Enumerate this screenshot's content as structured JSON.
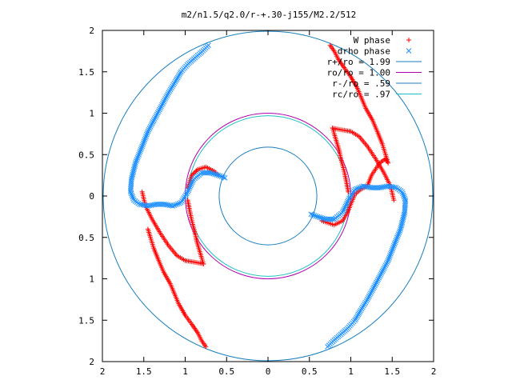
{
  "chart_data": {
    "type": "scatter",
    "title": "m2/n1.5/q2.0/r-+.30-j155/M2.2/512",
    "xlim": [
      -2,
      2
    ],
    "ylim": [
      -2,
      2
    ],
    "x_ticks": [
      -2,
      -1.5,
      -1,
      -0.5,
      0,
      0.5,
      1,
      1.5,
      2
    ],
    "y_ticks": [
      2,
      1.5,
      1,
      0.5,
      0,
      -0.5,
      -1,
      -1.5,
      -2
    ],
    "x_tick_labels": [
      "2",
      "1.5",
      "1",
      "0.5",
      "0",
      "0.5",
      "1",
      "1.5",
      "2"
    ],
    "y_tick_labels": [
      "2",
      "1.5",
      "1",
      "0.5",
      "0",
      "0.5",
      "1",
      "1.5",
      "2"
    ],
    "grid": false,
    "legend_position": "top-right",
    "series": [
      {
        "name": "W phase",
        "marker": "plus",
        "color": "#ff0000",
        "paths": [
          [
            [
              0.75,
              1.82
            ],
            [
              0.8,
              1.75
            ],
            [
              0.85,
              1.65
            ],
            [
              0.92,
              1.55
            ],
            [
              1.0,
              1.44
            ],
            [
              1.08,
              1.3
            ],
            [
              1.13,
              1.18
            ],
            [
              1.18,
              1.06
            ],
            [
              1.26,
              0.92
            ],
            [
              1.32,
              0.78
            ],
            [
              1.38,
              0.63
            ],
            [
              1.42,
              0.5
            ],
            [
              1.45,
              0.4
            ]
          ],
          [
            [
              1.45,
              0.4
            ],
            [
              1.42,
              0.45
            ],
            [
              1.35,
              0.4
            ],
            [
              1.25,
              0.25
            ],
            [
              1.2,
              0.12
            ],
            [
              1.12,
              0.08
            ],
            [
              1.05,
              0.02
            ],
            [
              1.0,
              -0.1
            ],
            [
              0.96,
              -0.2
            ],
            [
              0.9,
              -0.3
            ],
            [
              0.8,
              -0.35
            ],
            [
              0.65,
              -0.3
            ]
          ],
          [
            [
              1.52,
              -0.05
            ],
            [
              1.48,
              0.12
            ],
            [
              1.4,
              0.28
            ],
            [
              1.3,
              0.45
            ],
            [
              1.2,
              0.6
            ],
            [
              1.1,
              0.72
            ],
            [
              1.0,
              0.78
            ],
            [
              0.88,
              0.8
            ],
            [
              0.78,
              0.82
            ]
          ],
          [
            [
              0.78,
              0.82
            ],
            [
              0.8,
              0.75
            ],
            [
              0.83,
              0.65
            ],
            [
              0.86,
              0.55
            ],
            [
              0.88,
              0.45
            ],
            [
              0.92,
              0.3
            ],
            [
              0.95,
              0.15
            ],
            [
              0.97,
              0.05
            ]
          ],
          [
            [
              -0.75,
              -1.82
            ],
            [
              -0.8,
              -1.75
            ],
            [
              -0.85,
              -1.65
            ],
            [
              -0.92,
              -1.55
            ],
            [
              -1.0,
              -1.44
            ],
            [
              -1.08,
              -1.3
            ],
            [
              -1.13,
              -1.18
            ],
            [
              -1.18,
              -1.06
            ],
            [
              -1.26,
              -0.92
            ],
            [
              -1.32,
              -0.78
            ],
            [
              -1.38,
              -0.63
            ],
            [
              -1.42,
              -0.5
            ],
            [
              -1.45,
              -0.4
            ]
          ],
          [
            [
              -1.52,
              0.05
            ],
            [
              -1.48,
              -0.12
            ],
            [
              -1.4,
              -0.28
            ],
            [
              -1.3,
              -0.45
            ],
            [
              -1.2,
              -0.6
            ],
            [
              -1.1,
              -0.72
            ],
            [
              -1.0,
              -0.78
            ],
            [
              -0.88,
              -0.8
            ],
            [
              -0.78,
              -0.82
            ]
          ],
          [
            [
              -0.78,
              -0.82
            ],
            [
              -0.8,
              -0.75
            ],
            [
              -0.83,
              -0.65
            ],
            [
              -0.86,
              -0.55
            ],
            [
              -0.88,
              -0.45
            ],
            [
              -0.92,
              -0.3
            ],
            [
              -0.95,
              -0.15
            ],
            [
              -0.97,
              -0.05
            ]
          ],
          [
            [
              -0.97,
              0.1
            ],
            [
              -0.92,
              0.25
            ],
            [
              -0.85,
              0.32
            ],
            [
              -0.75,
              0.35
            ],
            [
              -0.65,
              0.3
            ],
            [
              -0.6,
              0.25
            ]
          ]
        ]
      },
      {
        "name": "drho phase",
        "marker": "cross",
        "color": "#1e90ff",
        "paths": [
          [
            [
              0.72,
              -1.82
            ],
            [
              0.8,
              -1.74
            ],
            [
              0.88,
              -1.67
            ],
            [
              0.96,
              -1.6
            ],
            [
              1.05,
              -1.5
            ],
            [
              1.12,
              -1.38
            ],
            [
              1.2,
              -1.25
            ],
            [
              1.28,
              -1.1
            ],
            [
              1.36,
              -0.95
            ],
            [
              1.45,
              -0.78
            ],
            [
              1.52,
              -0.6
            ],
            [
              1.6,
              -0.4
            ],
            [
              1.65,
              -0.2
            ],
            [
              1.66,
              -0.05
            ],
            [
              1.62,
              0.05
            ],
            [
              1.55,
              0.1
            ],
            [
              1.45,
              0.12
            ],
            [
              1.35,
              0.1
            ],
            [
              1.25,
              0.1
            ],
            [
              1.15,
              0.12
            ],
            [
              1.05,
              0.08
            ],
            [
              0.97,
              -0.05
            ],
            [
              0.9,
              -0.2
            ],
            [
              0.8,
              -0.28
            ],
            [
              0.7,
              -0.28
            ],
            [
              0.6,
              -0.25
            ],
            [
              0.52,
              -0.22
            ]
          ],
          [
            [
              -0.72,
              1.82
            ],
            [
              -0.8,
              1.74
            ],
            [
              -0.88,
              1.67
            ],
            [
              -0.96,
              1.6
            ],
            [
              -1.05,
              1.5
            ],
            [
              -1.12,
              1.38
            ],
            [
              -1.2,
              1.25
            ],
            [
              -1.28,
              1.1
            ],
            [
              -1.36,
              0.95
            ],
            [
              -1.45,
              0.78
            ],
            [
              -1.52,
              0.6
            ],
            [
              -1.6,
              0.4
            ],
            [
              -1.65,
              0.2
            ],
            [
              -1.66,
              0.05
            ],
            [
              -1.62,
              -0.05
            ],
            [
              -1.55,
              -0.1
            ],
            [
              -1.45,
              -0.12
            ],
            [
              -1.35,
              -0.1
            ],
            [
              -1.25,
              -0.1
            ],
            [
              -1.15,
              -0.12
            ],
            [
              -1.05,
              -0.08
            ],
            [
              -0.97,
              0.05
            ],
            [
              -0.9,
              0.2
            ],
            [
              -0.8,
              0.28
            ],
            [
              -0.7,
              0.28
            ],
            [
              -0.6,
              0.25
            ],
            [
              -0.52,
              0.22
            ]
          ]
        ]
      }
    ],
    "circles": [
      {
        "name": "r+/ro = 1.99",
        "r": 1.99,
        "color": "#1a7fbf"
      },
      {
        "name": "ro/ro = 1.00",
        "r": 1.0,
        "color": "#b000b0"
      },
      {
        "name": "r-/ro = .59",
        "r": 0.59,
        "color": "#1a7fbf"
      },
      {
        "name": "rc/ro = .97",
        "r": 0.97,
        "color": "#20c0c0"
      }
    ]
  }
}
